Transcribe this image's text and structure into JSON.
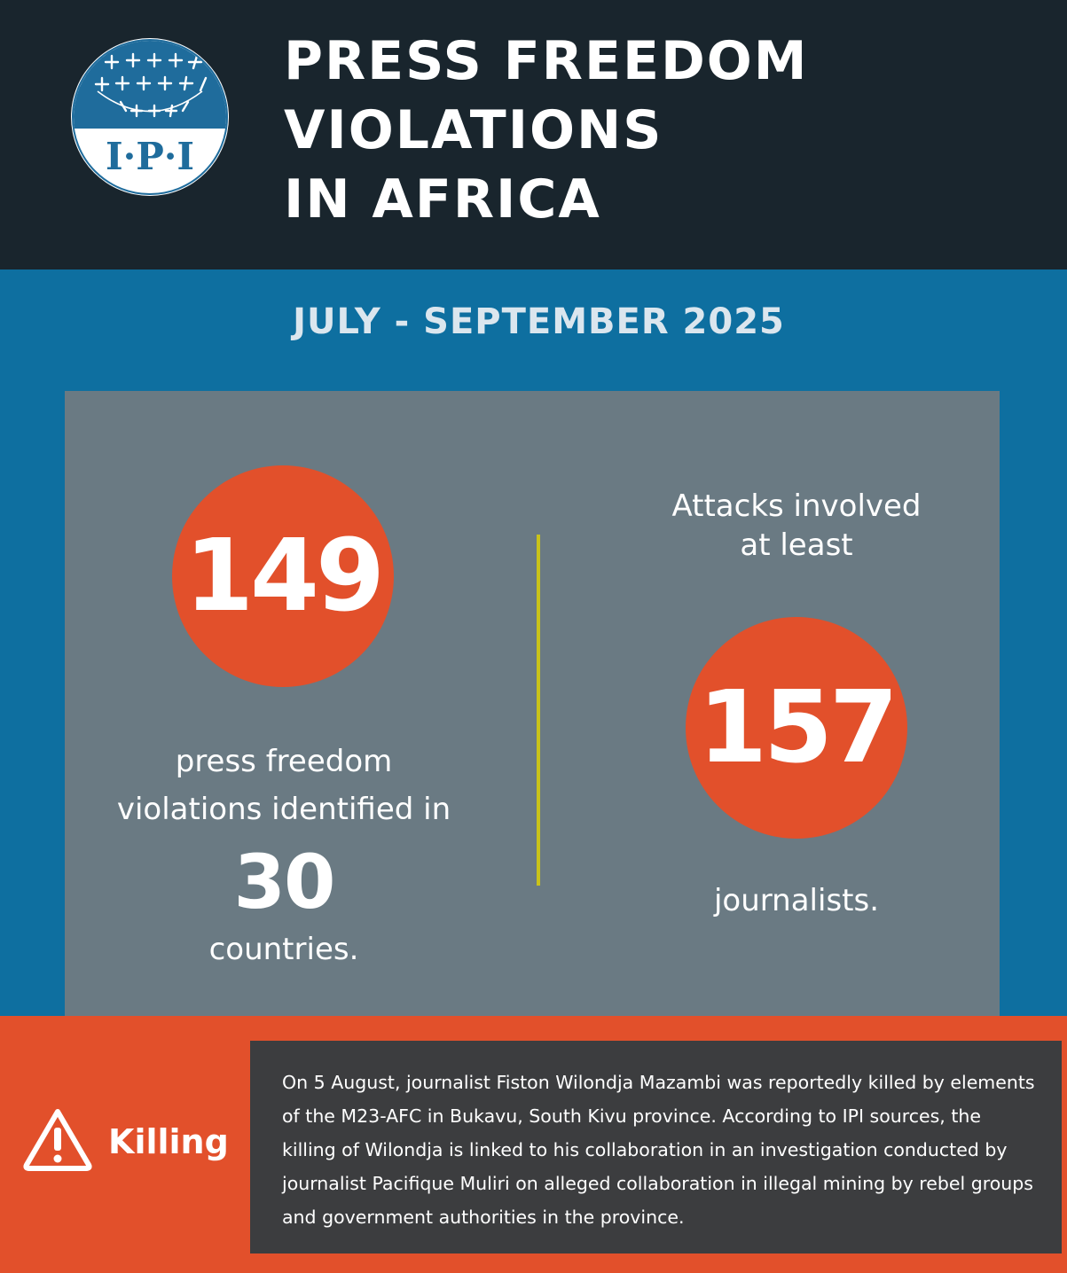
{
  "logo": {
    "text": "I·P·I",
    "icon": "ipi-globe-logo"
  },
  "title_lines": [
    "PRESS FREEDOM",
    "VIOLATIONS",
    "IN AFRICA"
  ],
  "period": "JULY - SEPTEMBER 2025",
  "stats": {
    "violations_count": "149",
    "violations_text_line1": "press freedom",
    "violations_text_line2": "violations identified in",
    "countries_count": "30",
    "countries_text": "countries.",
    "attacks_text_line1": "Attacks involved",
    "attacks_text_line2": "at least",
    "journalists_count": "157",
    "journalists_text": "journalists."
  },
  "incident": {
    "icon": "warning-icon",
    "label": "Killing",
    "text": "On 5 August, journalist Fiston Wilondja Mazambi was reportedly killed by elements of the M23-AFC in Bukavu, South Kivu province. According to IPI sources, the killing of Wilondja is linked to his collaboration in an investigation conducted by journalist Pacifique Muliri on alleged collaboration in illegal mining by rebel groups and government authorities in the province."
  },
  "colors": {
    "header_bg": "#19252d",
    "band_bg": "#0e6fa0",
    "stats_bg": "#6a7a83",
    "accent_orange": "#e2502b",
    "divider_yellow": "#c9c21a",
    "incident_box_bg": "#3c3d3f"
  }
}
